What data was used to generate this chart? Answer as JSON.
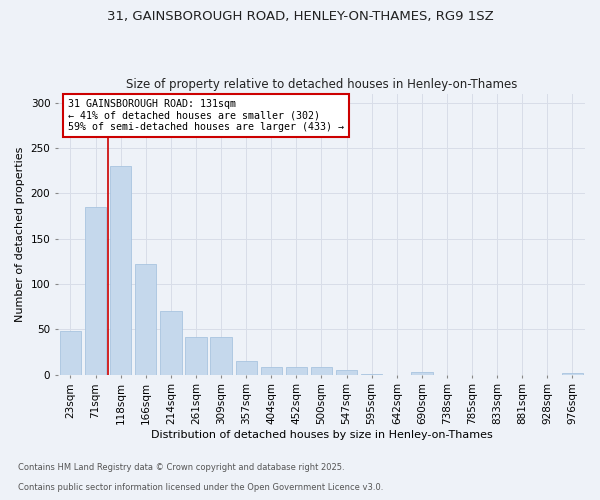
{
  "title1": "31, GAINSBOROUGH ROAD, HENLEY-ON-THAMES, RG9 1SZ",
  "title2": "Size of property relative to detached houses in Henley-on-Thames",
  "xlabel": "Distribution of detached houses by size in Henley-on-Thames",
  "ylabel": "Number of detached properties",
  "categories": [
    "23sqm",
    "71sqm",
    "118sqm",
    "166sqm",
    "214sqm",
    "261sqm",
    "309sqm",
    "357sqm",
    "404sqm",
    "452sqm",
    "500sqm",
    "547sqm",
    "595sqm",
    "642sqm",
    "690sqm",
    "738sqm",
    "785sqm",
    "833sqm",
    "881sqm",
    "928sqm",
    "976sqm"
  ],
  "values": [
    48,
    185,
    230,
    122,
    70,
    42,
    42,
    15,
    9,
    9,
    8,
    5,
    1,
    0,
    3,
    0,
    0,
    0,
    0,
    0,
    2
  ],
  "bar_color": "#c5d8ec",
  "bar_edgecolor": "#a8c4e0",
  "grid_color": "#d8dde8",
  "background_color": "#eef2f8",
  "vline_x": 1.5,
  "vline_color": "#cc0000",
  "annotation_text": "31 GAINSBOROUGH ROAD: 131sqm\n← 41% of detached houses are smaller (302)\n59% of semi-detached houses are larger (433) →",
  "annotation_box_facecolor": "#ffffff",
  "annotation_box_edgecolor": "#cc0000",
  "footer1": "Contains HM Land Registry data © Crown copyright and database right 2025.",
  "footer2": "Contains public sector information licensed under the Open Government Licence v3.0.",
  "ylim": [
    0,
    310
  ],
  "yticks": [
    0,
    50,
    100,
    150,
    200,
    250,
    300
  ],
  "title1_fontsize": 9.5,
  "title2_fontsize": 8.5,
  "xlabel_fontsize": 8.0,
  "ylabel_fontsize": 8.0,
  "tick_fontsize": 7.5,
  "ann_fontsize": 7.2,
  "footer_fontsize": 6.0
}
